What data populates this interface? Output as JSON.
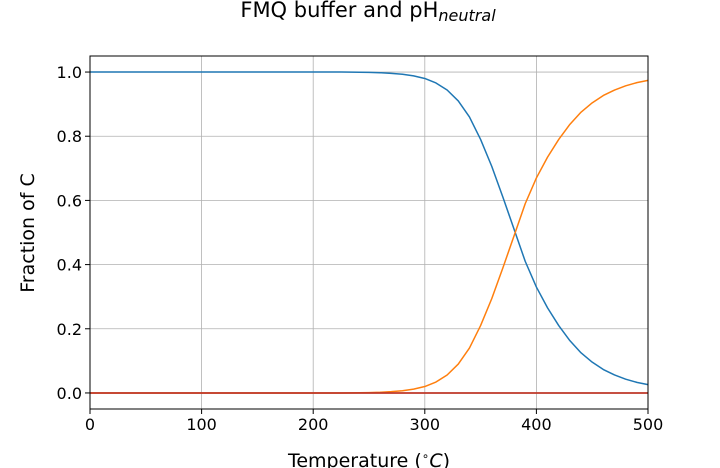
{
  "chart_data": {
    "type": "line",
    "title": "FMQ buffer and pH",
    "title_subscript": "neutral",
    "xlabel": "Temperature (",
    "xlabel_degree": "∘",
    "xlabel_unit": "C",
    "xlabel_close": ")",
    "ylabel": "Fraction of C",
    "xlim": [
      0,
      500
    ],
    "ylim": [
      -0.05,
      1.05
    ],
    "grid": true,
    "legend": "none",
    "xticks": [
      0,
      100,
      200,
      300,
      400,
      500
    ],
    "xtick_labels": [
      "0",
      "100",
      "200",
      "300",
      "400",
      "500"
    ],
    "yticks": [
      0.0,
      0.2,
      0.4,
      0.6,
      0.8,
      1.0
    ],
    "ytick_labels": [
      "0.0",
      "0.2",
      "0.4",
      "0.6",
      "0.8",
      "1.0"
    ],
    "x": [
      0,
      25,
      50,
      75,
      100,
      125,
      150,
      175,
      200,
      225,
      250,
      260,
      270,
      280,
      290,
      300,
      310,
      320,
      330,
      340,
      350,
      360,
      370,
      380,
      390,
      400,
      410,
      420,
      430,
      440,
      450,
      460,
      470,
      480,
      490,
      500
    ],
    "series": [
      {
        "color": "#1f77b4",
        "values": [
          1.0,
          1.0,
          1.0,
          1.0,
          1.0,
          1.0,
          1.0,
          1.0,
          1.0,
          1.0,
          0.999,
          0.998,
          0.996,
          0.993,
          0.988,
          0.98,
          0.966,
          0.944,
          0.91,
          0.86,
          0.79,
          0.706,
          0.61,
          0.51,
          0.41,
          0.33,
          0.265,
          0.21,
          0.163,
          0.125,
          0.096,
          0.073,
          0.056,
          0.043,
          0.033,
          0.026
        ]
      },
      {
        "color": "#ff7f0e",
        "values": [
          0.0,
          0.0,
          0.0,
          0.0,
          0.0,
          0.0,
          0.0,
          0.0,
          0.0,
          0.0,
          0.001,
          0.002,
          0.004,
          0.007,
          0.012,
          0.02,
          0.034,
          0.056,
          0.09,
          0.14,
          0.21,
          0.294,
          0.39,
          0.49,
          0.59,
          0.67,
          0.735,
          0.79,
          0.837,
          0.875,
          0.904,
          0.927,
          0.944,
          0.957,
          0.967,
          0.974
        ]
      },
      {
        "color": "#2ca02c",
        "values": [
          0.0,
          0.0,
          0.0,
          0.0,
          0.0,
          0.0,
          0.0,
          0.0,
          0.0,
          0.0,
          0.0,
          0.0,
          0.0,
          0.0,
          0.0,
          0.0,
          0.0,
          0.0,
          0.0,
          0.0,
          0.0,
          0.0,
          0.0,
          0.0,
          0.0,
          0.0,
          0.0,
          0.0,
          0.0,
          0.0,
          0.0,
          0.0,
          0.0,
          0.0,
          0.0,
          0.0
        ]
      },
      {
        "color": "#d62728",
        "values": [
          0.0,
          0.0,
          0.0,
          0.0,
          0.0,
          0.0,
          0.0,
          0.0,
          0.0,
          0.0,
          0.0,
          0.0,
          0.0,
          0.0,
          0.0,
          0.0,
          0.0,
          0.0,
          0.0,
          0.0,
          0.0,
          0.0,
          0.0,
          0.0,
          0.0,
          0.0,
          0.0,
          0.0,
          0.0,
          0.0,
          0.0,
          0.0,
          0.0,
          0.0,
          0.0,
          0.0
        ]
      }
    ]
  }
}
